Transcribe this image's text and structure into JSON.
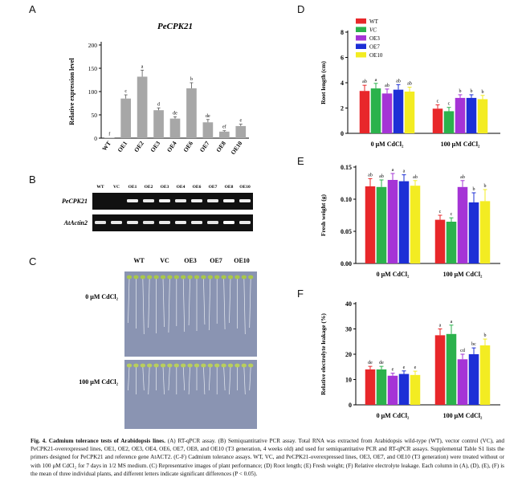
{
  "panels": {
    "A": "A",
    "B": "B",
    "C": "C",
    "D": "D",
    "E": "E",
    "F": "F"
  },
  "chart_data": [
    {
      "id": "A",
      "type": "bar",
      "title": "PeCPK21",
      "ylabel": "Relative expression level",
      "categories": [
        "WT",
        "OE1",
        "OE2",
        "OE3",
        "OE4",
        "OE6",
        "OE7",
        "OE8",
        "OE10"
      ],
      "values": [
        1,
        85,
        132,
        60,
        42,
        107,
        34,
        14,
        26
      ],
      "errors": [
        0,
        8,
        14,
        5,
        4,
        12,
        6,
        2,
        4
      ],
      "letters": [
        "f",
        "c",
        "a",
        "d",
        "de",
        "b",
        "de",
        "ef",
        "e"
      ],
      "ylim": [
        0,
        200
      ],
      "yticks": [
        0,
        50,
        100,
        150,
        200
      ],
      "color": "#a7a7a7"
    },
    {
      "id": "D",
      "type": "bar",
      "ylabel": "Root length (cm)",
      "groups": [
        "0 μM CdCl₂",
        "100 μM CdCl₂"
      ],
      "series": [
        {
          "name": "WT",
          "color": "#e8272a",
          "values": [
            3.35,
            1.95
          ],
          "errors": [
            0.45,
            0.3
          ],
          "letters": [
            "ab",
            "c"
          ]
        },
        {
          "name": "VC",
          "color": "#2bb24c",
          "values": [
            3.55,
            1.75
          ],
          "errors": [
            0.4,
            0.3
          ],
          "letters": [
            "a",
            "c"
          ]
        },
        {
          "name": "OE3",
          "color": "#a534d6",
          "values": [
            3.15,
            2.8
          ],
          "errors": [
            0.35,
            0.25
          ],
          "letters": [
            "ab",
            "b"
          ]
        },
        {
          "name": "OE7",
          "color": "#1d2fd6",
          "values": [
            3.45,
            2.8
          ],
          "errors": [
            0.4,
            0.25
          ],
          "letters": [
            "ab",
            "b"
          ]
        },
        {
          "name": "OE10",
          "color": "#f3ec22",
          "values": [
            3.3,
            2.7
          ],
          "errors": [
            0.35,
            0.3
          ],
          "letters": [
            "ab",
            "b"
          ]
        }
      ],
      "ylim": [
        0,
        8
      ],
      "yticks": [
        0,
        2,
        4,
        6,
        8
      ]
    },
    {
      "id": "E",
      "type": "bar",
      "ylabel": "Fresh weight (g)",
      "groups": [
        "0 μM CdCl₂",
        "100 μM CdCl₂"
      ],
      "series": [
        {
          "name": "WT",
          "color": "#e8272a",
          "values": [
            0.12,
            0.068
          ],
          "errors": [
            0.012,
            0.007
          ],
          "letters": [
            "ab",
            "c"
          ]
        },
        {
          "name": "VC",
          "color": "#2bb24c",
          "values": [
            0.119,
            0.065
          ],
          "errors": [
            0.011,
            0.006
          ],
          "letters": [
            "ab",
            "c"
          ]
        },
        {
          "name": "OE3",
          "color": "#a534d6",
          "values": [
            0.13,
            0.119
          ],
          "errors": [
            0.01,
            0.01
          ],
          "letters": [
            "a",
            "ab"
          ]
        },
        {
          "name": "OE7",
          "color": "#1d2fd6",
          "values": [
            0.128,
            0.095
          ],
          "errors": [
            0.01,
            0.015
          ],
          "letters": [
            "a",
            "b"
          ]
        },
        {
          "name": "OE10",
          "color": "#f3ec22",
          "values": [
            0.121,
            0.097
          ],
          "errors": [
            0.008,
            0.018
          ],
          "letters": [
            "ab",
            "b"
          ]
        }
      ],
      "ylim": [
        0,
        0.15
      ],
      "yticks": [
        "0.00",
        "0.05",
        "0.10",
        "0.15"
      ]
    },
    {
      "id": "F",
      "type": "bar",
      "ylabel": "Relative electrolyte leakage (%)",
      "groups": [
        "0 μM CdCl₂",
        "100 μM CdCl₂"
      ],
      "series": [
        {
          "name": "WT",
          "color": "#e8272a",
          "values": [
            14,
            27.5
          ],
          "errors": [
            1.2,
            2.5
          ],
          "letters": [
            "de",
            "a"
          ]
        },
        {
          "name": "VC",
          "color": "#2bb24c",
          "values": [
            14,
            28
          ],
          "errors": [
            1.2,
            3.5
          ],
          "letters": [
            "de",
            "a"
          ]
        },
        {
          "name": "OE3",
          "color": "#a534d6",
          "values": [
            11.5,
            18
          ],
          "errors": [
            1,
            2
          ],
          "letters": [
            "e",
            "cd"
          ]
        },
        {
          "name": "OE7",
          "color": "#1d2fd6",
          "values": [
            12.2,
            20
          ],
          "errors": [
            1.2,
            2.5
          ],
          "letters": [
            "e",
            "bc"
          ]
        },
        {
          "name": "OE10",
          "color": "#f3ec22",
          "values": [
            11.8,
            23.5
          ],
          "errors": [
            1.5,
            2.5
          ],
          "letters": [
            "e",
            "b"
          ]
        }
      ],
      "ylim": [
        0,
        40
      ],
      "yticks": [
        0,
        10,
        20,
        30,
        40
      ]
    }
  ],
  "gel": {
    "lanes": [
      "WT",
      "VC",
      "OE1",
      "OE2",
      "OE3",
      "OE4",
      "OE6",
      "OE7",
      "OE8",
      "OE10"
    ],
    "rows": [
      {
        "label": "PeCPK21",
        "intensity": [
          0,
          0,
          0.9,
          0.85,
          0.95,
          0.85,
          0.9,
          0.85,
          0.95,
          0.9
        ]
      },
      {
        "label": "AtActin2",
        "intensity": [
          0.8,
          0.85,
          0.85,
          0.8,
          0.85,
          0.85,
          0.85,
          0.8,
          1,
          0.85
        ]
      }
    ]
  },
  "photo": {
    "columns": [
      "WT",
      "VC",
      "OE3",
      "OE7",
      "OE10"
    ],
    "rows": [
      "0 μM CdCl₂",
      "100 μM CdCl₂"
    ]
  },
  "caption": {
    "label": "Fig. 4.",
    "title": "Cadmium tolerance tests of Arabidopsis lines.",
    "body": "(A) RT-qPCR assay. (B) Semiquantitative PCR assay. Total RNA was extracted from Arabidopsis wild-type (WT), vector control (VC), and PeCPK21-overexpressed lines, OE1, OE2, OE3, OE4, OE6, OE7, OE8, and OE10 (T3 generation, 4 weeks old) and used for semiquantitative PCR and RT-qPCR assays. Supplemental Table S1 lists the primers designed for PeCPK21 and reference gene AtACT2. (C-F) Cadmium tolerance assays. WT, VC, and PeCPK21-overexpressed lines, OE3, OE7, and OE10 (T3 generation) were treated without or with 100 μM CdCl₂ for 7 days in 1/2 MS medium. (C) Representative images of plant performance; (D) Root length; (E) Fresh weight; (F) Relative electrolyte leakage. Each column in (A), (D), (E), (F) is the mean of three individual plants, and different letters indicate significant differences (P < 0.05)."
  }
}
